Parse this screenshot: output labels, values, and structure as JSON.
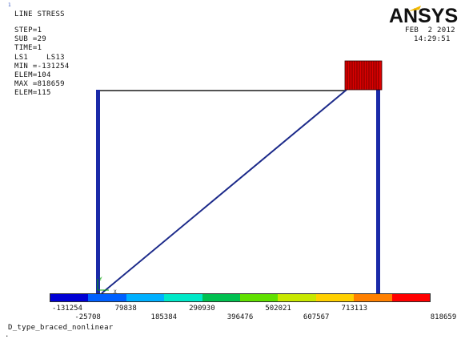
{
  "header": {
    "plot_title": "LINE STRESS",
    "step": "STEP=1",
    "sub": "SUB =29",
    "time": "TIME=1",
    "items": "LS1    LS13",
    "min": "MIN =-131254",
    "elem_min": "ELEM=104",
    "max": "MAX =818659",
    "elem_max": "ELEM=115",
    "date": "FEB  2 2012",
    "clock": "14:29:51"
  },
  "logo": {
    "text": "ANSYS"
  },
  "legend": {
    "colors": [
      "#0000d4",
      "#0060ff",
      "#00b0ff",
      "#00e8c8",
      "#00c050",
      "#60e000",
      "#c8e800",
      "#ffd000",
      "#ff8000",
      "#ff0000"
    ],
    "upper_ticks": [
      "-131254",
      "79838",
      "290930",
      "502021",
      "713113"
    ],
    "lower_ticks": [
      "-25708",
      "185384",
      "396476",
      "607567",
      "818659"
    ]
  },
  "footer": {
    "model_name": "D_type_braced_nonlinear"
  },
  "model": {
    "left_column_color": "#1a2aa8",
    "right_column_color": "#1a2aa8",
    "beam_color": "#1a1a1a",
    "brace_color": "#1c2a8a",
    "max_element_color": "#dd0000",
    "axis_label_x": "X",
    "axis_label_y": "Y"
  }
}
